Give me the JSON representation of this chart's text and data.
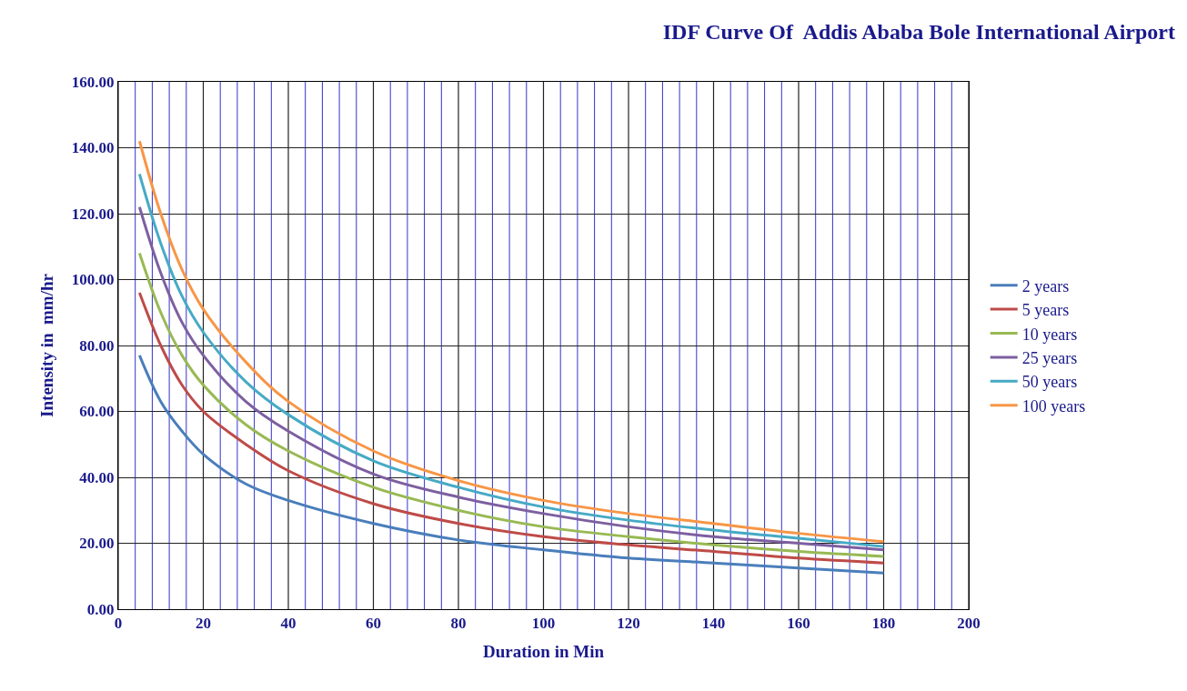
{
  "chart_data": {
    "type": "line",
    "title": "IDF Curve Of  Addis Ababa Bole International Airport",
    "xlabel": "Duration in Min",
    "ylabel": "Intensity in  mm/hr",
    "x": [
      5,
      10,
      15,
      20,
      30,
      40,
      60,
      80,
      100,
      120,
      140,
      160,
      180
    ],
    "series": [
      {
        "name": "2 years",
        "color": "#4a7ebb",
        "values": [
          77,
          63,
          54,
          47,
          38,
          33,
          26,
          21,
          18,
          15.5,
          14,
          12.5,
          11
        ]
      },
      {
        "name": "5 years",
        "color": "#be4b48",
        "values": [
          96,
          80,
          68,
          60,
          50,
          42,
          32,
          26,
          22,
          19.5,
          17.5,
          15.5,
          14
        ]
      },
      {
        "name": "10 years",
        "color": "#98b954",
        "values": [
          108,
          90,
          77,
          68,
          56,
          48,
          37,
          30,
          25,
          22,
          19.5,
          17.5,
          16
        ]
      },
      {
        "name": "25 years",
        "color": "#7d5fa0",
        "values": [
          122,
          102,
          87,
          77,
          63,
          54,
          41,
          34,
          29,
          25,
          22,
          20,
          18
        ]
      },
      {
        "name": "50 years",
        "color": "#46aac5",
        "values": [
          132,
          111,
          95,
          84,
          69,
          59,
          45,
          37,
          31,
          27,
          24,
          21.5,
          19
        ]
      },
      {
        "name": "100 years",
        "color": "#f79646",
        "values": [
          142,
          120,
          103,
          91,
          75,
          63,
          48,
          39,
          33,
          29,
          26,
          23,
          20.5
        ]
      }
    ],
    "xlim": [
      0,
      200
    ],
    "xticks": [
      0,
      {
        "value": 4,
        "label": null
      },
      {
        "value": 8,
        "label": null
      },
      {
        "value": 12,
        "label": null
      },
      {
        "value": 16,
        "label": null
      },
      20,
      {
        "value": 24,
        "label": null
      },
      {
        "value": 28,
        "label": null
      },
      {
        "value": 32,
        "label": null
      },
      {
        "value": 36,
        "label": null
      },
      40,
      {
        "value": 44,
        "label": null
      },
      {
        "value": 48,
        "label": null
      },
      {
        "value": 52,
        "label": null
      },
      {
        "value": 56,
        "label": null
      },
      60,
      {
        "value": 64,
        "label": null
      },
      {
        "value": 68,
        "label": null
      },
      {
        "value": 72,
        "label": null
      },
      {
        "value": 76,
        "label": null
      },
      80,
      {
        "value": 84,
        "label": null
      },
      {
        "value": 88,
        "label": null
      },
      {
        "value": 92,
        "label": null
      },
      {
        "value": 96,
        "label": null
      },
      100,
      {
        "value": 104,
        "label": null
      },
      {
        "value": 108,
        "label": null
      },
      {
        "value": 112,
        "label": null
      },
      {
        "value": 116,
        "label": null
      },
      120,
      {
        "value": 124,
        "label": null
      },
      {
        "value": 128,
        "label": null
      },
      {
        "value": 132,
        "label": null
      },
      {
        "value": 136,
        "label": null
      },
      140,
      {
        "value": 144,
        "label": null
      },
      {
        "value": 148,
        "label": null
      },
      {
        "value": 152,
        "label": null
      },
      {
        "value": 156,
        "label": null
      },
      160,
      {
        "value": 164,
        "label": null
      },
      {
        "value": 168,
        "label": null
      },
      {
        "value": 172,
        "label": null
      },
      {
        "value": 176,
        "label": null
      },
      180,
      {
        "value": 184,
        "label": null
      },
      {
        "value": 188,
        "label": null
      },
      {
        "value": 192,
        "label": null
      },
      {
        "value": 196,
        "label": null
      },
      200
    ],
    "ylim": [
      0,
      160
    ],
    "yticks": [
      {
        "value": 0,
        "label": "0.00"
      },
      {
        "value": 20,
        "label": "20.00"
      },
      {
        "value": 40,
        "label": "40.00"
      },
      {
        "value": 60,
        "label": "60.00"
      },
      {
        "value": 80,
        "label": "80.00"
      },
      {
        "value": 100,
        "label": "100.00"
      },
      {
        "value": 120,
        "label": "120.00"
      },
      {
        "value": 140,
        "label": "140.00"
      },
      {
        "value": 160,
        "label": "160.00"
      }
    ],
    "grid": true,
    "legend": "right",
    "marker": "none",
    "line_style": "solid"
  }
}
